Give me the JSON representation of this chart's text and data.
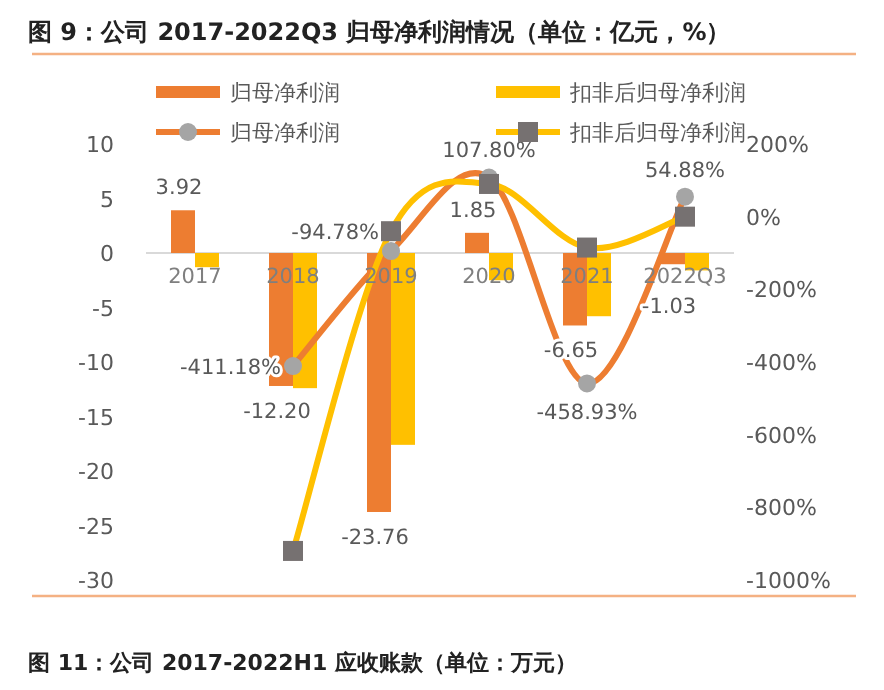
{
  "chart_data": {
    "type": "bar",
    "title": "图 9：公司 2017-2022Q3 归母净利润情况（单位：亿元，%）",
    "categories": [
      "2017",
      "2018",
      "2019",
      "2020",
      "2021",
      "2022Q3"
    ],
    "series": [
      {
        "name": "归母净利润",
        "color": "#ed7d31",
        "values": [
          3.92,
          -12.2,
          -23.76,
          1.85,
          -6.65,
          -1.03
        ],
        "value_labels": [
          "3.92",
          "-12.20",
          "-23.76",
          "1.85",
          "-6.65",
          "-1.03"
        ]
      },
      {
        "name": "扣非后归母净利润",
        "color": "#ffc000",
        "values": [
          -1.3,
          -12.4,
          -17.6,
          -2.5,
          -5.8,
          -1.6
        ]
      },
      {
        "name": "归母净利润",
        "type": "line",
        "axis": "y2",
        "marker": "circle",
        "color": "#ed7d31",
        "values": [
          null,
          -411.18,
          -94.78,
          107.8,
          -458.93,
          54.88
        ],
        "value_labels": [
          null,
          "-411.18%",
          "-94.78%",
          "107.80%",
          "-458.93%",
          "54.88%"
        ]
      },
      {
        "name": "扣非后归母净利润",
        "type": "line",
        "axis": "y2",
        "marker": "square",
        "color": "#ffc000",
        "values": [
          null,
          -920,
          -40,
          90,
          -85,
          0
        ]
      }
    ],
    "ylim": [
      -30,
      10
    ],
    "yticks": [
      -30,
      -25,
      -20,
      -15,
      -10,
      -5,
      0,
      5,
      10
    ],
    "y2lim": [
      -1000,
      200
    ],
    "y2ticks": [
      {
        "value": -1000,
        "label": "-1000%"
      },
      {
        "value": -800,
        "label": "-800%"
      },
      {
        "value": -600,
        "label": "-600%"
      },
      {
        "value": -400,
        "label": "-400%"
      },
      {
        "value": -200,
        "label": "-200%"
      },
      {
        "value": 0,
        "label": "0%"
      },
      {
        "value": 200,
        "label": "200%"
      }
    ],
    "grid": false,
    "legend": "top",
    "annotations": [
      "图 11：公司 2017-2022H1 应收账款（单位：万元）"
    ]
  }
}
